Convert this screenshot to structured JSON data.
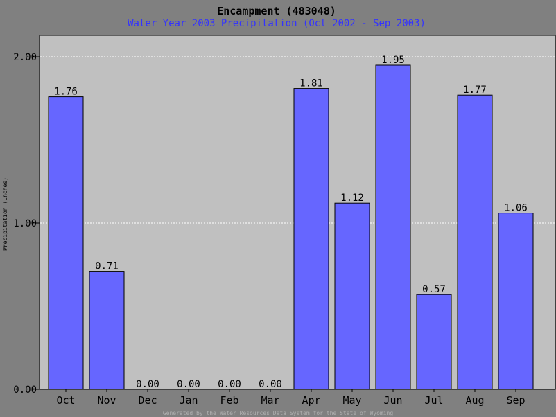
{
  "chart_data": {
    "type": "bar",
    "title": "Encampment (483048)",
    "subtitle": "Water Year 2003 Precipitation (Oct 2002 - Sep 2003)",
    "ylabel": "Precipitation (Inches)",
    "xlabel": "",
    "ylim": [
      0,
      2.2
    ],
    "yticks": [
      {
        "value": 0,
        "label": "0.00"
      },
      {
        "value": 1,
        "label": "1.00"
      },
      {
        "value": 2,
        "label": "2.00"
      }
    ],
    "categories": [
      "Oct",
      "Nov",
      "Dec",
      "Jan",
      "Feb",
      "Mar",
      "Apr",
      "May",
      "Jun",
      "Jul",
      "Aug",
      "Sep"
    ],
    "values": [
      1.76,
      0.71,
      0.0,
      0.0,
      0.0,
      0.0,
      1.81,
      1.12,
      1.95,
      0.57,
      1.77,
      1.06
    ],
    "value_labels": [
      "1.76",
      "0.71",
      "0.00",
      "0.00",
      "0.00",
      "0.00",
      "1.81",
      "1.12",
      "1.95",
      "0.57",
      "1.77",
      "1.06"
    ],
    "grid": true,
    "colors": {
      "bar": "#6666ff",
      "plot_bg": "#c0c0c0",
      "page_bg": "#808080",
      "title": "#000000",
      "subtitle": "#3333ff",
      "footer": "#b0b0b0"
    }
  },
  "footer": "Generated by the Water Resources Data System for the State of Wyoming"
}
